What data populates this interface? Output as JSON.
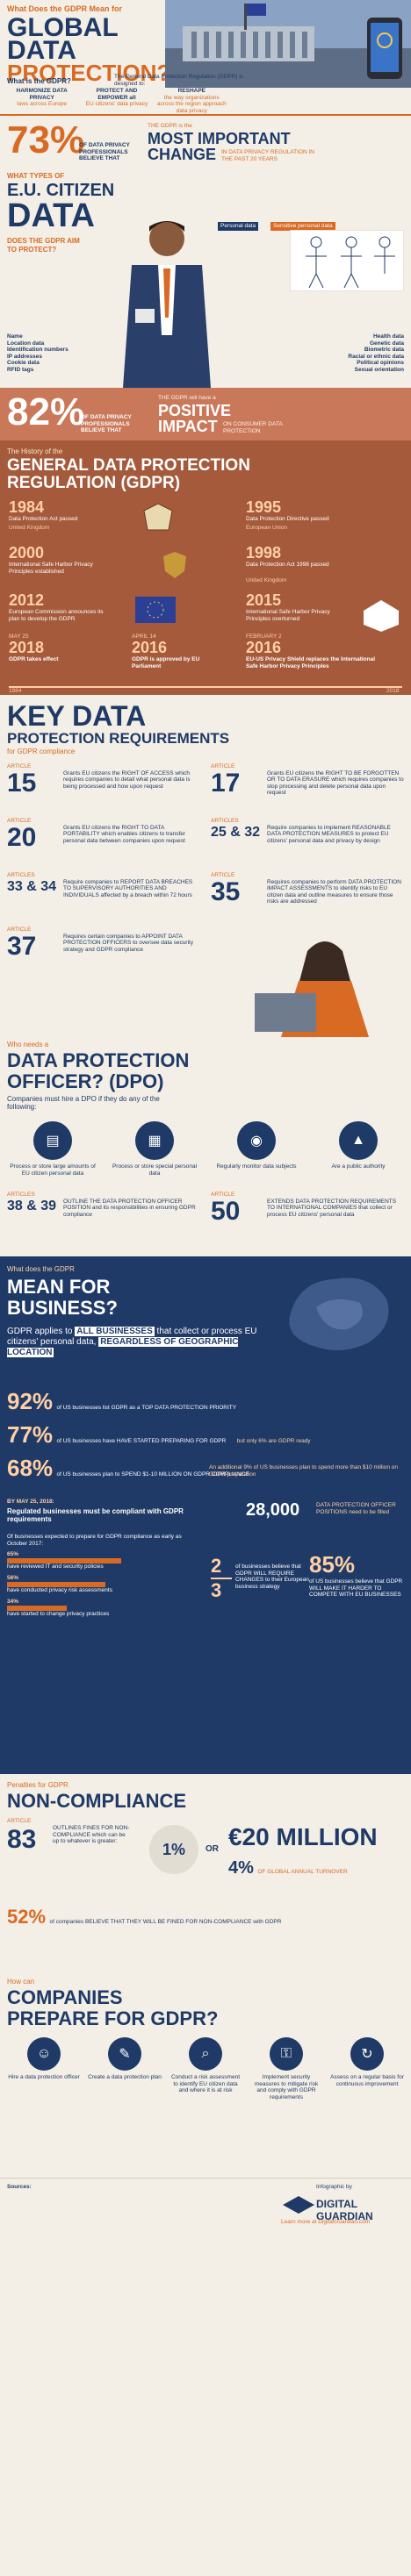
{
  "intro": {
    "kicker": "What Does the GDPR Mean for",
    "title_line1": "GLOBAL",
    "title_line2": "DATA",
    "title_line3": "PROTECTION?",
    "what_is_label": "What is the GDPR?",
    "what_is_text": "The General Data Protection Regulation (GDPR) is designed to:",
    "goals": [
      {
        "bold": "HARMONIZE DATA PRIVACY",
        "rest": "laws across Europe"
      },
      {
        "bold": "PROTECT AND EMPOWER all",
        "rest": "EU citizens' data privacy"
      },
      {
        "bold": "RESHAPE",
        "rest": "the way organizations across the region approach data privacy"
      }
    ]
  },
  "stat73": {
    "value": "73%",
    "note_small": "OF DATA PRIVACY PROFESSIONALS BELIEVE THAT",
    "line1": "THE GDPR is the",
    "big1": "MOST IMPORTANT",
    "big2": "CHANGE",
    "tail": "IN DATA PRIVACY REGULATION IN THE PAST 20 YEARS"
  },
  "eu_data": {
    "kicker": "WHAT TYPES OF",
    "title1": "E.U. CITIZEN",
    "title2": "DATA",
    "sub1": "DOES THE GDPR AIM",
    "sub2": "TO PROTECT?",
    "tag_personal": "Personal data",
    "tag_sensitive": "Sensitive personal data",
    "personal_list": [
      "Name",
      "Location data",
      "Identification numbers",
      "IP addresses",
      "Cookie data",
      "RFID tags"
    ],
    "sensitive_list": [
      "Health data",
      "Genetic data",
      "Biometric data",
      "Racial or ethnic data",
      "Political opinions",
      "Sexual orientation"
    ]
  },
  "stat82": {
    "value": "82%",
    "note": "OF DATA PRIVACY PROFESSIONALS BELIEVE THAT",
    "line1": "THE GDPR will have a",
    "big1": "POSITIVE",
    "big2": "IMPACT",
    "tail": "ON CONSUMER DATA PROTECTION"
  },
  "history": {
    "kicker": "The History of the",
    "title1": "GENERAL DATA PROTECTION",
    "title2": "REGULATION (GDPR)",
    "events": [
      {
        "year": "1984",
        "text": "Data Protection Act passed",
        "sub": "United Kingdom"
      },
      {
        "year": "1995",
        "text": "Data Protection Directive passed",
        "sub": "European Union"
      },
      {
        "year": "2000",
        "text": "International Safe Harbor Privacy Principles established",
        "sub": ""
      },
      {
        "year": "1998",
        "text": "Data Protection Act 1998 passed",
        "sub": "United Kingdom"
      },
      {
        "year": "2012",
        "text": "European Commission announces its plan to develop the GDPR",
        "sub": ""
      },
      {
        "year": "2015",
        "text": "International Safe Harbor Privacy Principles overturned",
        "sub": ""
      },
      {
        "year": "2018",
        "date": "MAY 25",
        "text": "GDPR takes effect",
        "sub": ""
      },
      {
        "year": "2016",
        "date": "APRIL 14",
        "text": "GDPR is approved by EU Parliament",
        "sub": ""
      },
      {
        "year": "2016",
        "date": "FEBRUARY 2",
        "text": "EU-US Privacy Shield replaces the International Safe Harbor Privacy Principles",
        "sub": ""
      }
    ],
    "axis_left": "1984",
    "axis_right": "2018"
  },
  "key": {
    "title1": "KEY DATA",
    "title2": "PROTECTION REQUIREMENTS",
    "sub": "for GDPR compliance",
    "articles": [
      {
        "label": "ARTICLE",
        "num": "15",
        "text": "Grants EU citizens the RIGHT OF ACCESS which requires companies to detail what personal data is being processed and how upon request"
      },
      {
        "label": "ARTICLE",
        "num": "17",
        "text": "Grants EU citizens the RIGHT TO BE FORGOTTEN OR TO DATA ERASURE which requires companies to stop processing and delete personal data upon request"
      },
      {
        "label": "ARTICLE",
        "num": "20",
        "text": "Grants EU citizens the RIGHT TO DATA PORTABILITY which enables citizens to transfer personal data between companies upon request"
      },
      {
        "label": "ARTICLES",
        "num": "25 & 32",
        "text": "Require companies to implement REASONABLE DATA PROTECTION MEASURES to protect EU citizens' personal data and privacy by design"
      },
      {
        "label": "ARTICLES",
        "num": "33 & 34",
        "text": "Require companies to REPORT DATA BREACHES TO SUPERVISORY AUTHORITIES AND INDIVIDUALS affected by a breach within 72 hours"
      },
      {
        "label": "ARTICLE",
        "num": "35",
        "text": "Requires companies to perform DATA PROTECTION IMPACT ASSESSMENTS to identify risks to EU citizen data and outline measures to ensure those risks are addressed"
      },
      {
        "label": "ARTICLE",
        "num": "37",
        "text": "Requires certain companies to APPOINT DATA PROTECTION OFFICERS to oversee data security strategy and GDPR compliance"
      }
    ]
  },
  "dpo": {
    "kicker": "Who needs a",
    "title1": "DATA PROTECTION",
    "title2": "OFFICER? (DPO)",
    "sub": "Companies must hire a DPO if they do any of the following:",
    "items": [
      "Process or store large amounts of EU citizen personal data",
      "Process or store special personal data",
      "Regularly monitor data subjects",
      "Are a public authority"
    ],
    "art_a_label": "ARTICLES",
    "art_a_num": "38 & 39",
    "art_a_text": "OUTLINE THE DATA PROTECTION OFFICER POSITION and its responsibilities in ensuring GDPR compliance",
    "art_b_label": "ARTICLE",
    "art_b_num": "50",
    "art_b_text": "EXTENDS DATA PROTECTION REQUIREMENTS TO INTERNATIONAL COMPANIES that collect or process EU citizens' personal data"
  },
  "business": {
    "kicker": "What does the GDPR",
    "title1": "MEAN FOR",
    "title2": "BUSINESS?",
    "text1": "GDPR applies to",
    "text_hl1": "ALL BUSINESSES",
    "text2": "that collect or process EU citizens' personal data,",
    "text_hl2": "REGARDLESS OF GEOGRAPHIC LOCATION",
    "stat92_value": "92%",
    "stat92_text": "of US businesses list GDPR as a TOP DATA PROTECTION PRIORITY",
    "stat77_value": "77%",
    "stat77_text": "of US businesses have HAVE STARTED PREPARING FOR GDPR",
    "stat77_side": "but only 6% are GDPR ready",
    "stat68_value": "68%",
    "stat68_text": "of US businesses plan to SPEND $1-10 MILLION ON GDPR COMPLIANCE",
    "stat68_side": "An additional 9% of US businesses plan to spend more than $10 million on GDPR preparation",
    "by_may": "BY MAY 25, 2018:",
    "by_may_sub": "Regulated businesses must be compliant with GDPR requirements",
    "dpo_value": "28,000",
    "dpo_text": "DATA PROTECTION OFFICER POSITIONS need to be filled",
    "bars_title": "Of businesses expected to prepare for GDPR compliance as early as October 2017:",
    "bars": [
      {
        "pct": "65%",
        "text": "have reviewed IT and security policies"
      },
      {
        "pct": "56%",
        "text": "have conducted privacy risk assessments"
      },
      {
        "pct": "34%",
        "text": "have started to change privacy practices"
      }
    ],
    "frac_text": "of businesses believe that GDPR WILL REQUIRE CHANGES to their European business strategy",
    "frac_num": "2",
    "frac_den": "3",
    "stat85_value": "85%",
    "stat85_text": "of US businesses believe that GDPR WILL MAKE IT HARDER TO COMPETE WITH EU BUSINESSES"
  },
  "penalties": {
    "kicker": "Penalties for GDPR",
    "title": "NON-COMPLIANCE",
    "art_label": "ARTICLE",
    "art_num": "83",
    "art_text": "OUTLINES FINES FOR NON-COMPLIANCE which can be up to whatever is greater:",
    "percent": "1%",
    "or": "OR",
    "money_prefix": "€",
    "money": "20 MILLION",
    "pct4": "4%",
    "pct4_text": "OF GLOBAL ANNUAL TURNOVER",
    "stat52_value": "52%",
    "stat52_text": "of companies BELIEVE THAT THEY WILL BE FINED FOR NON-COMPLIANCE with GDPR"
  },
  "prepare": {
    "kicker": "How can",
    "title1": "COMPANIES",
    "title2": "PREPARE FOR GDPR?",
    "steps": [
      "Hire a data protection officer",
      "Create a data protection plan",
      "Conduct a risk assessment to identify EU citizen data and where it is at risk",
      "Implement security measures to mitigate risk and comply with GDPR requirements",
      "Assess on a regular basis for continuous improvement"
    ]
  },
  "footer": {
    "sources_label": "Sources:",
    "infographic_by": "Infographic by",
    "brand": "DIGITAL GUARDIAN",
    "learn_more": "Learn more at DigitalGuardian.com"
  },
  "colors": {
    "navy": "#1f3a66",
    "orange": "#d86a24",
    "rust": "#a55a3b",
    "cream": "#f3efe6"
  }
}
